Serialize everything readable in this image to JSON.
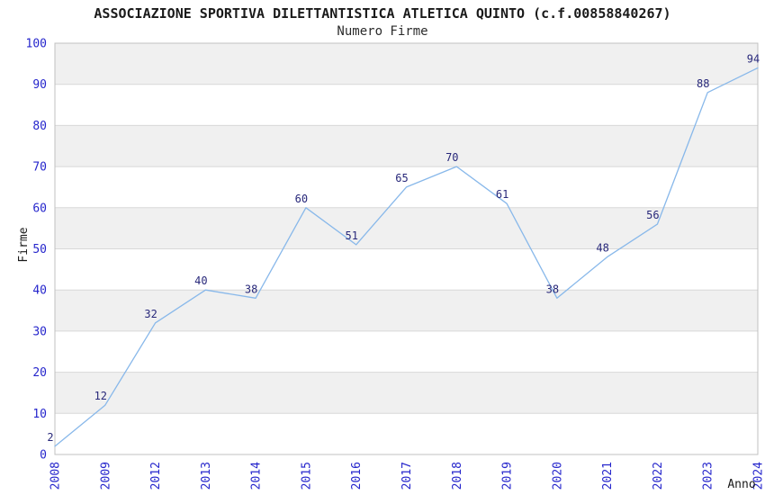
{
  "page": {
    "background": "#ffffff"
  },
  "chart_data": {
    "type": "line",
    "title": "ASSOCIAZIONE SPORTIVA DILETTANTISTICA ATLETICA QUINTO (c.f.00858840267)",
    "subtitle": "Numero Firme",
    "xlabel": "Anno",
    "ylabel": "Firme",
    "categories": [
      "2008",
      "2009",
      "2012",
      "2013",
      "2014",
      "2015",
      "2016",
      "2017",
      "2018",
      "2019",
      "2020",
      "2021",
      "2022",
      "2023",
      "2024"
    ],
    "values": [
      2,
      12,
      32,
      40,
      38,
      60,
      51,
      65,
      70,
      61,
      38,
      48,
      56,
      88,
      94
    ],
    "ylim": [
      0,
      100
    ],
    "ytick_step": 10,
    "grid": true,
    "legend": "none",
    "band_fill_alternate": true,
    "x_tick_rotation": -90,
    "colors": {
      "line": "#88b8ea",
      "axis_tick_label": "#2626cc",
      "data_label": "#28287a",
      "band": "#f0f0f0",
      "gridline": "#d8d8d8",
      "plot_border": "#c0c0c0",
      "title_text": "#1a1a1a",
      "axis_title_text": "#1a1a1a"
    }
  }
}
